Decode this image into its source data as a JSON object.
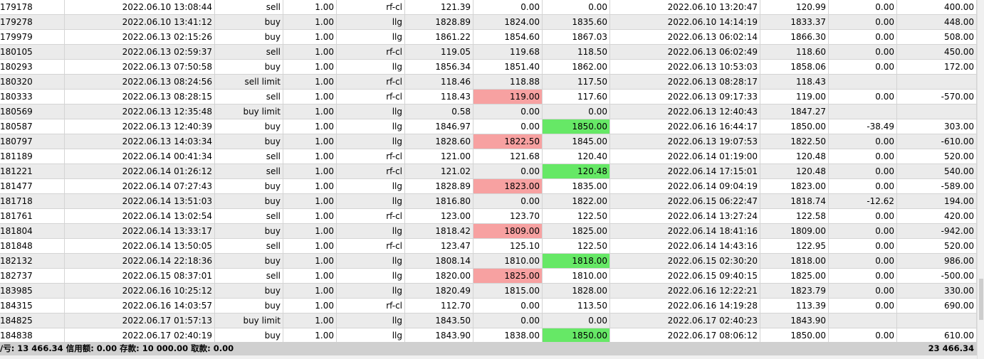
{
  "rows": [
    {
      "ticket": "179178",
      "open_time": "2022.06.10 13:08:44",
      "type": "sell",
      "size": "1.00",
      "symbol": "rf-cl",
      "open_price": "121.39",
      "sl": "0.00",
      "tp": "0.00",
      "close_time": "2022.06.10 13:20:47",
      "close_price": "120.99",
      "swap": "0.00",
      "profit": "400.00",
      "sl_hl": "",
      "tp_hl": ""
    },
    {
      "ticket": "179278",
      "open_time": "2022.06.10 13:41:12",
      "type": "buy",
      "size": "1.00",
      "symbol": "llg",
      "open_price": "1828.89",
      "sl": "1824.00",
      "tp": "1835.60",
      "close_time": "2022.06.10 14:14:19",
      "close_price": "1833.37",
      "swap": "0.00",
      "profit": "448.00",
      "sl_hl": "",
      "tp_hl": ""
    },
    {
      "ticket": "179979",
      "open_time": "2022.06.13 02:15:26",
      "type": "buy",
      "size": "1.00",
      "symbol": "llg",
      "open_price": "1861.22",
      "sl": "1854.60",
      "tp": "1867.03",
      "close_time": "2022.06.13 06:02:14",
      "close_price": "1866.30",
      "swap": "0.00",
      "profit": "508.00",
      "sl_hl": "",
      "tp_hl": ""
    },
    {
      "ticket": "180105",
      "open_time": "2022.06.13 02:59:37",
      "type": "sell",
      "size": "1.00",
      "symbol": "rf-cl",
      "open_price": "119.05",
      "sl": "119.68",
      "tp": "118.50",
      "close_time": "2022.06.13 06:02:49",
      "close_price": "118.60",
      "swap": "0.00",
      "profit": "450.00",
      "sl_hl": "",
      "tp_hl": ""
    },
    {
      "ticket": "180293",
      "open_time": "2022.06.13 07:50:58",
      "type": "buy",
      "size": "1.00",
      "symbol": "llg",
      "open_price": "1856.34",
      "sl": "1851.40",
      "tp": "1862.00",
      "close_time": "2022.06.13 10:53:03",
      "close_price": "1858.06",
      "swap": "0.00",
      "profit": "172.00",
      "sl_hl": "",
      "tp_hl": ""
    },
    {
      "ticket": "180320",
      "open_time": "2022.06.13 08:24:56",
      "type": "sell limit",
      "size": "1.00",
      "symbol": "rf-cl",
      "open_price": "118.46",
      "sl": "118.88",
      "tp": "117.50",
      "close_time": "2022.06.13 08:28:17",
      "close_price": "118.43",
      "swap": "",
      "profit": "",
      "sl_hl": "",
      "tp_hl": ""
    },
    {
      "ticket": "180333",
      "open_time": "2022.06.13 08:28:15",
      "type": "sell",
      "size": "1.00",
      "symbol": "rf-cl",
      "open_price": "118.43",
      "sl": "119.00",
      "tp": "117.60",
      "close_time": "2022.06.13 09:17:33",
      "close_price": "119.00",
      "swap": "0.00",
      "profit": "-570.00",
      "sl_hl": "red",
      "tp_hl": ""
    },
    {
      "ticket": "180569",
      "open_time": "2022.06.13 12:35:48",
      "type": "buy limit",
      "size": "1.00",
      "symbol": "llg",
      "open_price": "0.58",
      "sl": "0.00",
      "tp": "0.00",
      "close_time": "2022.06.13 12:40:43",
      "close_price": "1847.27",
      "swap": "",
      "profit": "",
      "sl_hl": "",
      "tp_hl": ""
    },
    {
      "ticket": "180587",
      "open_time": "2022.06.13 12:40:39",
      "type": "buy",
      "size": "1.00",
      "symbol": "llg",
      "open_price": "1846.97",
      "sl": "0.00",
      "tp": "1850.00",
      "close_time": "2022.06.16 16:44:17",
      "close_price": "1850.00",
      "swap": "-38.49",
      "profit": "303.00",
      "sl_hl": "",
      "tp_hl": "green"
    },
    {
      "ticket": "180797",
      "open_time": "2022.06.13 14:03:34",
      "type": "buy",
      "size": "1.00",
      "symbol": "llg",
      "open_price": "1828.60",
      "sl": "1822.50",
      "tp": "1845.00",
      "close_time": "2022.06.13 19:07:53",
      "close_price": "1822.50",
      "swap": "0.00",
      "profit": "-610.00",
      "sl_hl": "red",
      "tp_hl": ""
    },
    {
      "ticket": "181189",
      "open_time": "2022.06.14 00:41:34",
      "type": "sell",
      "size": "1.00",
      "symbol": "rf-cl",
      "open_price": "121.00",
      "sl": "121.68",
      "tp": "120.40",
      "close_time": "2022.06.14 01:19:00",
      "close_price": "120.48",
      "swap": "0.00",
      "profit": "520.00",
      "sl_hl": "",
      "tp_hl": ""
    },
    {
      "ticket": "181221",
      "open_time": "2022.06.14 01:26:12",
      "type": "sell",
      "size": "1.00",
      "symbol": "rf-cl",
      "open_price": "121.02",
      "sl": "0.00",
      "tp": "120.48",
      "close_time": "2022.06.14 17:15:01",
      "close_price": "120.48",
      "swap": "0.00",
      "profit": "540.00",
      "sl_hl": "",
      "tp_hl": "green"
    },
    {
      "ticket": "181477",
      "open_time": "2022.06.14 07:27:43",
      "type": "buy",
      "size": "1.00",
      "symbol": "llg",
      "open_price": "1828.89",
      "sl": "1823.00",
      "tp": "1835.00",
      "close_time": "2022.06.14 09:04:19",
      "close_price": "1823.00",
      "swap": "0.00",
      "profit": "-589.00",
      "sl_hl": "red",
      "tp_hl": ""
    },
    {
      "ticket": "181718",
      "open_time": "2022.06.14 13:51:03",
      "type": "buy",
      "size": "1.00",
      "symbol": "llg",
      "open_price": "1816.80",
      "sl": "0.00",
      "tp": "1822.00",
      "close_time": "2022.06.15 06:22:47",
      "close_price": "1818.74",
      "swap": "-12.62",
      "profit": "194.00",
      "sl_hl": "",
      "tp_hl": ""
    },
    {
      "ticket": "181761",
      "open_time": "2022.06.14 13:02:54",
      "type": "sell",
      "size": "1.00",
      "symbol": "rf-cl",
      "open_price": "123.00",
      "sl": "123.70",
      "tp": "122.50",
      "close_time": "2022.06.14 13:27:24",
      "close_price": "122.58",
      "swap": "0.00",
      "profit": "420.00",
      "sl_hl": "",
      "tp_hl": ""
    },
    {
      "ticket": "181804",
      "open_time": "2022.06.14 13:33:17",
      "type": "buy",
      "size": "1.00",
      "symbol": "llg",
      "open_price": "1818.42",
      "sl": "1809.00",
      "tp": "1825.00",
      "close_time": "2022.06.14 18:41:16",
      "close_price": "1809.00",
      "swap": "0.00",
      "profit": "-942.00",
      "sl_hl": "red",
      "tp_hl": ""
    },
    {
      "ticket": "181848",
      "open_time": "2022.06.14 13:50:05",
      "type": "sell",
      "size": "1.00",
      "symbol": "rf-cl",
      "open_price": "123.47",
      "sl": "125.10",
      "tp": "122.50",
      "close_time": "2022.06.14 14:43:16",
      "close_price": "122.95",
      "swap": "0.00",
      "profit": "520.00",
      "sl_hl": "",
      "tp_hl": ""
    },
    {
      "ticket": "182132",
      "open_time": "2022.06.14 22:18:36",
      "type": "buy",
      "size": "1.00",
      "symbol": "llg",
      "open_price": "1808.14",
      "sl": "1810.00",
      "tp": "1818.00",
      "close_time": "2022.06.15 02:30:20",
      "close_price": "1818.00",
      "swap": "0.00",
      "profit": "986.00",
      "sl_hl": "",
      "tp_hl": "green"
    },
    {
      "ticket": "182737",
      "open_time": "2022.06.15 08:37:01",
      "type": "sell",
      "size": "1.00",
      "symbol": "llg",
      "open_price": "1820.00",
      "sl": "1825.00",
      "tp": "1810.00",
      "close_time": "2022.06.15 09:40:15",
      "close_price": "1825.00",
      "swap": "0.00",
      "profit": "-500.00",
      "sl_hl": "red",
      "tp_hl": ""
    },
    {
      "ticket": "183985",
      "open_time": "2022.06.16 10:25:12",
      "type": "buy",
      "size": "1.00",
      "symbol": "llg",
      "open_price": "1820.49",
      "sl": "1815.00",
      "tp": "1828.00",
      "close_time": "2022.06.16 12:22:21",
      "close_price": "1823.79",
      "swap": "0.00",
      "profit": "330.00",
      "sl_hl": "",
      "tp_hl": ""
    },
    {
      "ticket": "184315",
      "open_time": "2022.06.16 14:03:57",
      "type": "buy",
      "size": "1.00",
      "symbol": "rf-cl",
      "open_price": "112.70",
      "sl": "0.00",
      "tp": "113.50",
      "close_time": "2022.06.16 14:19:28",
      "close_price": "113.39",
      "swap": "0.00",
      "profit": "690.00",
      "sl_hl": "",
      "tp_hl": ""
    },
    {
      "ticket": "184825",
      "open_time": "2022.06.17 01:57:13",
      "type": "buy limit",
      "size": "1.00",
      "symbol": "llg",
      "open_price": "1843.50",
      "sl": "0.00",
      "tp": "0.00",
      "close_time": "2022.06.17 02:40:23",
      "close_price": "1843.90",
      "swap": "",
      "profit": "",
      "sl_hl": "",
      "tp_hl": ""
    },
    {
      "ticket": "184838",
      "open_time": "2022.06.17 02:40:19",
      "type": "buy",
      "size": "1.00",
      "symbol": "llg",
      "open_price": "1843.90",
      "sl": "1838.00",
      "tp": "1850.00",
      "close_time": "2022.06.17 08:06:12",
      "close_price": "1850.00",
      "swap": "0.00",
      "profit": "610.00",
      "sl_hl": "",
      "tp_hl": "green"
    }
  ],
  "status": {
    "summary": "/亏: 13 466.34  信用额: 0.00  存款: 10 000.00  取款: 0.00",
    "total": "23 466.34"
  },
  "colors": {
    "loss_highlight": "#f7a1a1",
    "profit_highlight": "#66e866",
    "alt_row": "#ebebeb",
    "status_bar": "#d0d0d0"
  }
}
